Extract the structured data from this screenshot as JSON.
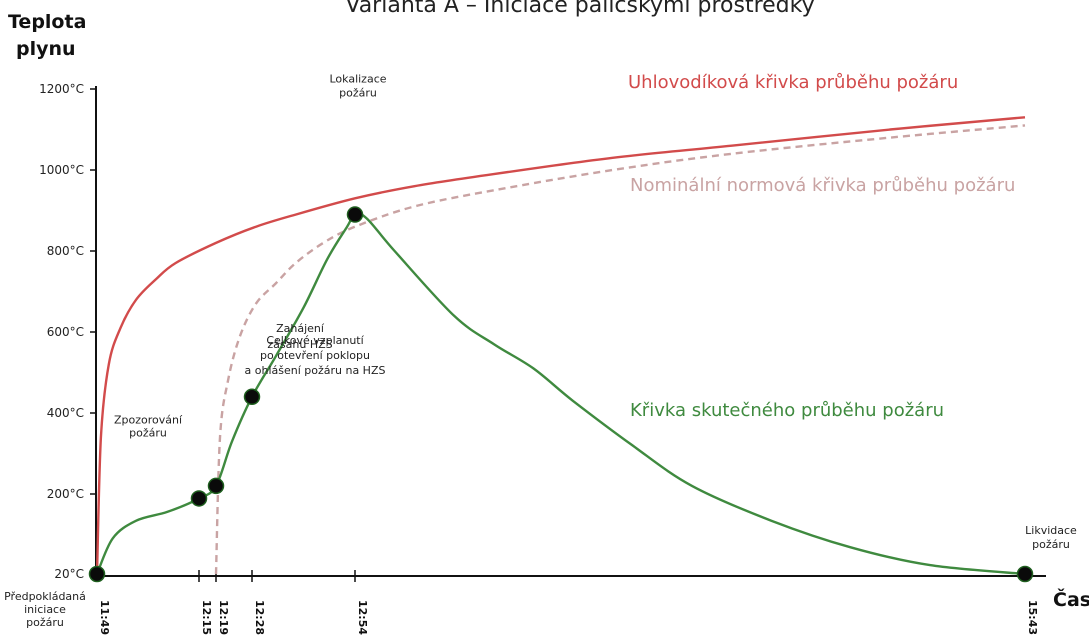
{
  "chart_data": {
    "type": "line",
    "title": "Varianta A – Iniciace paličskými prostředky",
    "ylabel": [
      "Teplota",
      "plynu"
    ],
    "xlabel": "Čas",
    "y_ticks": [
      "20°C",
      "200°C",
      "400°C",
      "600°C",
      "800°C",
      "1000°C",
      "1200°C"
    ],
    "y_tick_values": [
      20,
      200,
      400,
      600,
      800,
      1000,
      1200
    ],
    "x_ticks": [
      "11:49",
      "12:15",
      "12:19",
      "12:28",
      "12:54",
      "15:43"
    ],
    "x_tick_minutes": [
      0,
      26,
      30,
      39,
      65,
      234
    ],
    "series": [
      {
        "name": "Uhlovodíková křivka průběhu požáru",
        "color": "#d24b4b",
        "style": "solid",
        "x": [
          0,
          1,
          3,
          6,
          10,
          15,
          20,
          30,
          40,
          50,
          65,
          80,
          100,
          130,
          160,
          200,
          234
        ],
        "y": [
          20,
          340,
          520,
          610,
          680,
          730,
          770,
          820,
          860,
          890,
          930,
          960,
          990,
          1030,
          1060,
          1100,
          1130
        ]
      },
      {
        "name": "Nominální normová křivka průběhu požáru",
        "color": "#c9a3a3",
        "style": "dashed",
        "x": [
          30,
          31,
          33,
          36,
          40,
          45,
          50,
          57,
          65,
          80,
          100,
          130,
          160,
          200,
          234
        ],
        "y": [
          20,
          340,
          480,
          590,
          670,
          720,
          770,
          820,
          860,
          910,
          950,
          1000,
          1040,
          1080,
          1110
        ]
      },
      {
        "name": "Křivka skutečného průběhu požáru",
        "color": "#3f8a3f",
        "style": "solid",
        "x": [
          0,
          4,
          10,
          18,
          26,
          30,
          34,
          39,
          45,
          52,
          58,
          63,
          65,
          68,
          75,
          90,
          100,
          110,
          120,
          135,
          150,
          170,
          190,
          210,
          234
        ],
        "y": [
          20,
          100,
          140,
          160,
          190,
          220,
          330,
          440,
          540,
          660,
          780,
          860,
          890,
          880,
          800,
          640,
          570,
          510,
          430,
          320,
          220,
          140,
          80,
          40,
          20
        ]
      }
    ],
    "events": [
      {
        "x": 0,
        "y": 20,
        "label": [
          "Předpokládaná",
          "iniciace",
          "požáru"
        ]
      },
      {
        "x": 26,
        "y": 190,
        "label": [
          "Zpozorování",
          "požáru"
        ]
      },
      {
        "x": 30,
        "y": 220,
        "label": [
          "Celkové vzplanutí",
          "po otevření poklopu",
          "a ohlášení požáru na HZS"
        ]
      },
      {
        "x": 39,
        "y": 440,
        "label": [
          "Zahájení",
          "zásahu HZS"
        ]
      },
      {
        "x": 65,
        "y": 890,
        "label": [
          "Lokalizace",
          "požáru"
        ]
      },
      {
        "x": 234,
        "y": 20,
        "label": [
          "Likvidace",
          "požáru"
        ]
      }
    ],
    "ylim": [
      20,
      1200
    ],
    "xlim": [
      0,
      234
    ],
    "grid": false,
    "legend": "inline labels"
  }
}
